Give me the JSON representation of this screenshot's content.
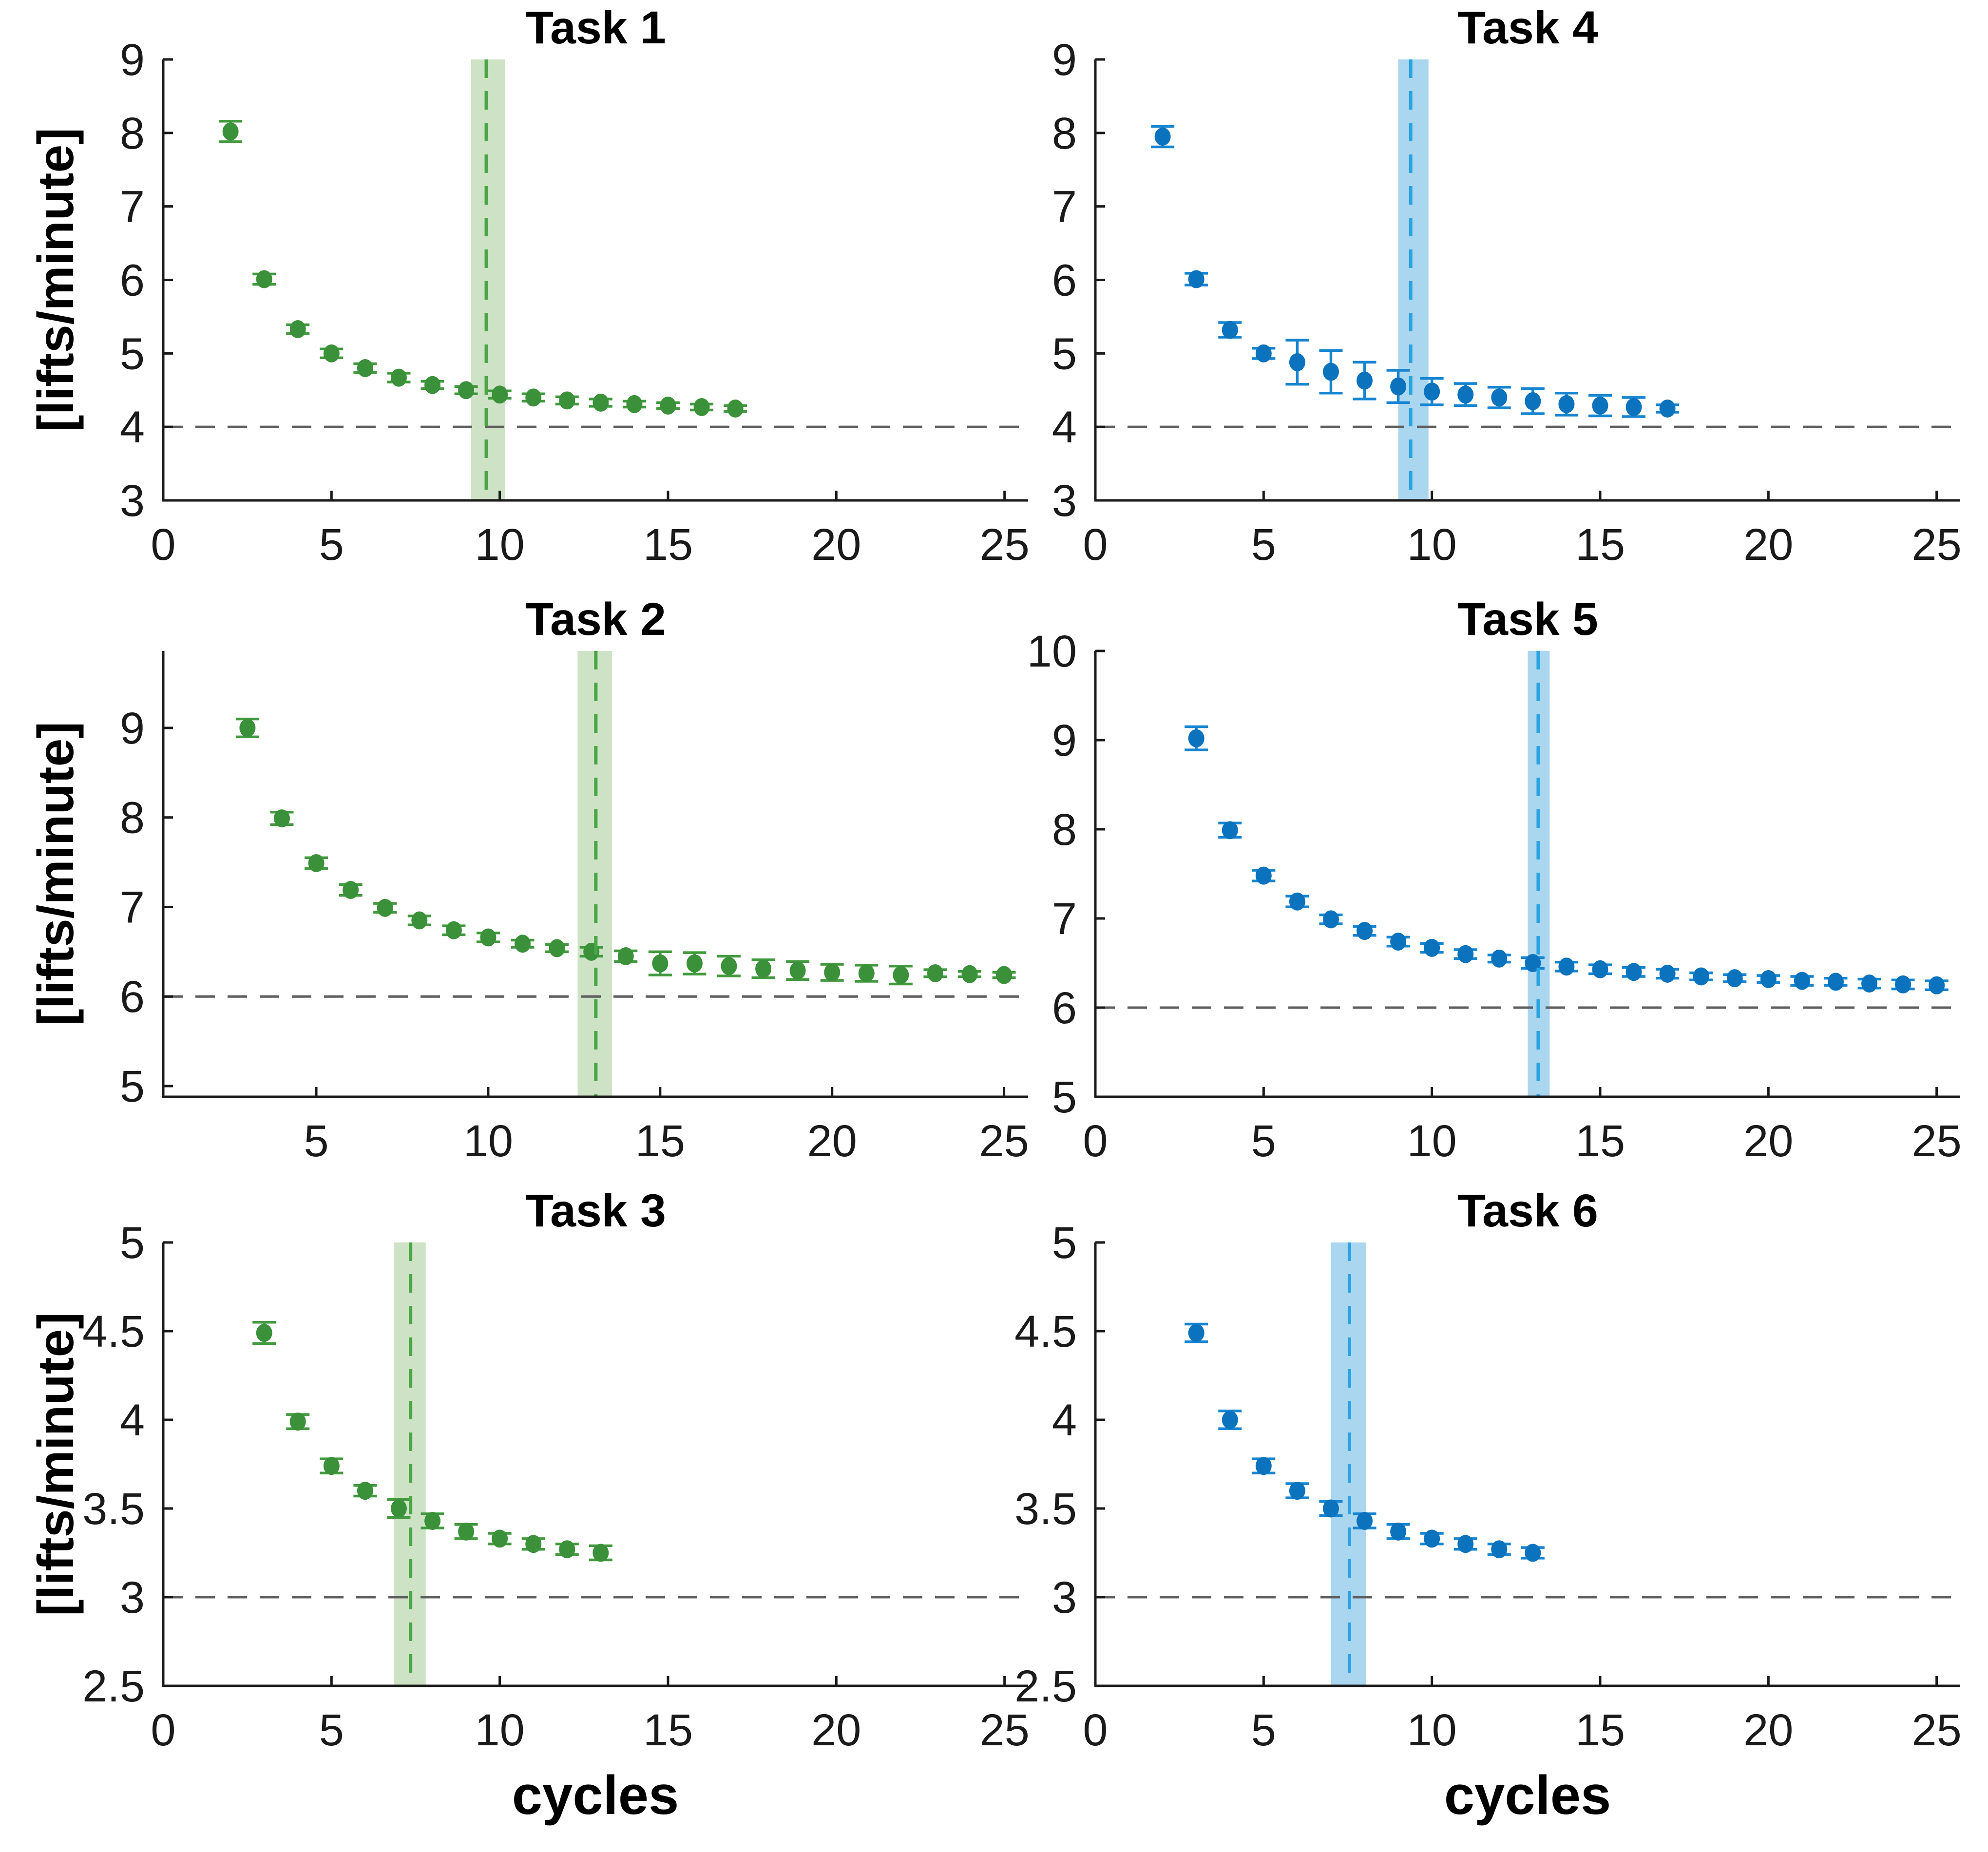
{
  "figure": {
    "ylabel": "[lifts/minute]",
    "xlabel": "cycles"
  },
  "colors": {
    "green": {
      "marker": "#3a9139",
      "line": "#42993e",
      "band": "#cee3c5",
      "band_dash": "#4aa545"
    },
    "blue": {
      "marker": "#0b72bd",
      "line": "#1585d1",
      "band": "#abd6f0",
      "band_dash": "#29a3e2"
    },
    "baseline_dash": "#5f5f5f",
    "axis": "#1a1a1a",
    "tick_text": "#1a1a1a"
  },
  "chart_data": [
    {
      "type": "scatter",
      "title": "Task 1",
      "scheme": "green",
      "ylabel": "[lifts/minute]",
      "x": [
        2,
        3,
        4,
        5,
        6,
        7,
        8,
        9,
        10,
        11,
        12,
        13,
        14,
        15,
        16,
        17
      ],
      "y": [
        8.02,
        6.01,
        5.33,
        5.0,
        4.8,
        4.67,
        4.57,
        4.5,
        4.44,
        4.4,
        4.36,
        4.33,
        4.31,
        4.29,
        4.27,
        4.25
      ],
      "err": [
        0.14,
        0.07,
        0.06,
        0.06,
        0.06,
        0.06,
        0.05,
        0.05,
        0.05,
        0.05,
        0.05,
        0.05,
        0.04,
        0.04,
        0.04,
        0.04
      ],
      "xlim": [
        0,
        25.7
      ],
      "ylim": [
        3,
        9
      ],
      "xticks": [
        0,
        5,
        10,
        15,
        20,
        25
      ],
      "yticks": [
        3,
        4,
        5,
        6,
        7,
        8,
        9
      ],
      "baseline": 4,
      "band": {
        "start": 9.15,
        "end": 10.15,
        "center": 9.6
      }
    },
    {
      "type": "scatter",
      "title": "Task 4",
      "scheme": "blue",
      "x": [
        2,
        3,
        4,
        5,
        6,
        7,
        8,
        9,
        10,
        11,
        12,
        13,
        14,
        15,
        16,
        17
      ],
      "y": [
        7.95,
        6.01,
        5.32,
        5.0,
        4.88,
        4.75,
        4.63,
        4.55,
        4.48,
        4.44,
        4.4,
        4.35,
        4.31,
        4.29,
        4.27,
        4.25
      ],
      "err": [
        0.14,
        0.08,
        0.1,
        0.07,
        0.3,
        0.29,
        0.25,
        0.22,
        0.18,
        0.15,
        0.14,
        0.17,
        0.15,
        0.14,
        0.13,
        0.05
      ],
      "xlim": [
        0,
        25.7
      ],
      "ylim": [
        3,
        9
      ],
      "xticks": [
        0,
        5,
        10,
        15,
        20,
        25
      ],
      "yticks": [
        3,
        4,
        5,
        6,
        7,
        8,
        9
      ],
      "baseline": 4,
      "band": {
        "start": 9.0,
        "end": 9.9,
        "center": 9.37
      }
    },
    {
      "type": "scatter",
      "title": "Task 2",
      "scheme": "green",
      "ylabel": "[lifts/minute]",
      "x": [
        3,
        4,
        5,
        6,
        7,
        8,
        9,
        10,
        11,
        12,
        13,
        14,
        15,
        16,
        17,
        18,
        19,
        20,
        21,
        22,
        23,
        24,
        25
      ],
      "y": [
        9.0,
        7.99,
        7.49,
        7.19,
        6.99,
        6.85,
        6.74,
        6.66,
        6.59,
        6.54,
        6.5,
        6.45,
        6.37,
        6.37,
        6.34,
        6.31,
        6.29,
        6.27,
        6.26,
        6.24,
        6.26,
        6.25,
        6.24
      ],
      "err": [
        0.1,
        0.07,
        0.06,
        0.06,
        0.05,
        0.05,
        0.05,
        0.05,
        0.04,
        0.04,
        0.05,
        0.06,
        0.13,
        0.12,
        0.11,
        0.1,
        0.1,
        0.09,
        0.09,
        0.1,
        0.04,
        0.03,
        0.03
      ],
      "xlim": [
        0.55,
        25.7
      ],
      "ylim": [
        4.88,
        9.86
      ],
      "xticks": [
        5,
        10,
        15,
        20,
        25
      ],
      "yticks": [
        5,
        6,
        7,
        8,
        9
      ],
      "baseline": 6,
      "band": {
        "start": 12.6,
        "end": 13.6,
        "center": 13.13
      }
    },
    {
      "type": "scatter",
      "title": "Task 5",
      "scheme": "blue",
      "x": [
        3,
        4,
        5,
        6,
        7,
        8,
        9,
        10,
        11,
        12,
        13,
        14,
        15,
        16,
        17,
        18,
        19,
        20,
        21,
        22,
        23,
        24,
        25
      ],
      "y": [
        9.02,
        7.99,
        7.48,
        7.19,
        6.99,
        6.86,
        6.74,
        6.67,
        6.6,
        6.55,
        6.5,
        6.46,
        6.43,
        6.4,
        6.38,
        6.35,
        6.33,
        6.32,
        6.3,
        6.29,
        6.27,
        6.26,
        6.25
      ],
      "err": [
        0.13,
        0.08,
        0.06,
        0.06,
        0.05,
        0.05,
        0.05,
        0.05,
        0.05,
        0.04,
        0.06,
        0.05,
        0.05,
        0.05,
        0.05,
        0.04,
        0.04,
        0.04,
        0.05,
        0.04,
        0.05,
        0.05,
        0.05
      ],
      "xlim": [
        0,
        25.7
      ],
      "ylim": [
        5,
        10
      ],
      "xticks": [
        0,
        5,
        10,
        15,
        20,
        25
      ],
      "yticks": [
        5,
        6,
        7,
        8,
        9,
        10
      ],
      "baseline": 6,
      "band": {
        "start": 12.85,
        "end": 13.5,
        "center": 13.16
      }
    },
    {
      "type": "scatter",
      "title": "Task 3",
      "scheme": "green",
      "ylabel": "[lifts/minute]",
      "xlabel": "cycles",
      "x": [
        3,
        4,
        5,
        6,
        7,
        8,
        9,
        10,
        11,
        12,
        13
      ],
      "y": [
        4.49,
        3.99,
        3.74,
        3.6,
        3.5,
        3.43,
        3.37,
        3.33,
        3.3,
        3.27,
        3.25
      ],
      "err": [
        0.06,
        0.04,
        0.04,
        0.03,
        0.05,
        0.04,
        0.04,
        0.03,
        0.03,
        0.03,
        0.04
      ],
      "xlim": [
        0,
        25.7
      ],
      "ylim": [
        2.5,
        5
      ],
      "xticks": [
        0,
        5,
        10,
        15,
        20,
        25
      ],
      "yticks": [
        2.5,
        3,
        3.5,
        4,
        4.5,
        5
      ],
      "baseline": 3,
      "band": {
        "start": 6.85,
        "end": 7.8,
        "center": 7.35
      }
    },
    {
      "type": "scatter",
      "title": "Task 6",
      "scheme": "blue",
      "xlabel": "cycles",
      "x": [
        3,
        4,
        5,
        6,
        7,
        8,
        9,
        10,
        11,
        12,
        13
      ],
      "y": [
        4.49,
        4.0,
        3.74,
        3.6,
        3.5,
        3.43,
        3.37,
        3.33,
        3.3,
        3.27,
        3.25
      ],
      "err": [
        0.05,
        0.05,
        0.04,
        0.04,
        0.04,
        0.04,
        0.04,
        0.03,
        0.03,
        0.03,
        0.03
      ],
      "xlim": [
        0,
        25.7
      ],
      "ylim": [
        2.5,
        5
      ],
      "xticks": [
        0,
        5,
        10,
        15,
        20,
        25
      ],
      "yticks": [
        2.5,
        3,
        3.5,
        4,
        4.5,
        5
      ],
      "baseline": 3,
      "band": {
        "start": 7.0,
        "end": 8.05,
        "center": 7.55
      }
    }
  ]
}
